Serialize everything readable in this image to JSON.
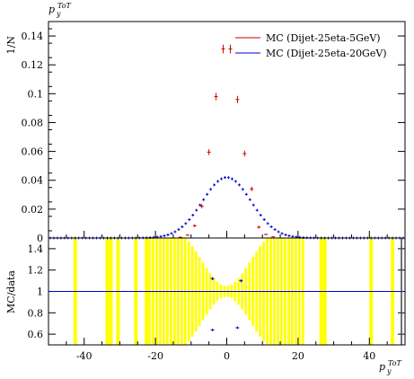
{
  "chart_data": [
    {
      "type": "scatter",
      "panel": "main",
      "ylabel": "1/N",
      "title_var": "p",
      "title_sub": "y",
      "title_sup": "ToT",
      "xlim": [
        -50,
        50
      ],
      "ylim": [
        0,
        0.15
      ],
      "xticks": [
        -40,
        -20,
        0,
        20,
        40
      ],
      "yticks": [
        0,
        0.02,
        0.04,
        0.06,
        0.08,
        0.1,
        0.12,
        0.14
      ],
      "ytick_labels": [
        "0",
        "0.02",
        "0.04",
        "0.06",
        "0.08",
        "0.1",
        "0.12",
        "0.14"
      ],
      "legend_position": "top-right",
      "series": [
        {
          "name": "MC (Dijet-25eta-5GeV)",
          "color": "#cc0000",
          "x": [
            -13,
            -11,
            -9,
            -7,
            -5,
            -3,
            -1,
            1,
            3,
            5,
            7,
            9,
            11,
            13
          ],
          "y": [
            0.0005,
            0.002,
            0.0085,
            0.022,
            0.0595,
            0.098,
            0.131,
            0.131,
            0.096,
            0.0585,
            0.034,
            0.0075,
            0.0025,
            0.0008
          ],
          "err": [
            0.0003,
            0.0005,
            0.001,
            0.0015,
            0.002,
            0.0025,
            0.003,
            0.003,
            0.0025,
            0.002,
            0.0015,
            0.001,
            0.0005,
            0.0003
          ]
        },
        {
          "name": "MC (Dijet-25eta-20GeV)",
          "color": "#0000cc",
          "sigma": 6.8,
          "amp": 0.042,
          "range": [
            -50,
            50
          ]
        }
      ]
    },
    {
      "type": "scatter",
      "panel": "ratio",
      "ylabel": "MC/data",
      "xlabel_var": "p",
      "xlabel_sub": "y",
      "xlabel_sup": "ToT",
      "xlim": [
        -50,
        50
      ],
      "ylim": [
        0.5,
        1.5
      ],
      "yticks": [
        0.6,
        0.8,
        1,
        1.2,
        1.4
      ],
      "ytick_labels": [
        "0.6",
        "0.8",
        "1",
        "1.2",
        "1.4"
      ],
      "xticks": [
        -40,
        -20,
        0,
        20,
        40
      ],
      "xtick_labels": [
        "-40",
        "-20",
        "0",
        "20",
        "40"
      ],
      "reference_line": 1,
      "band_color": "#ffff00",
      "band_full": [
        [
          -43,
          -42
        ],
        [
          -34,
          -33
        ],
        [
          -33,
          -32
        ],
        [
          -31,
          -30
        ],
        [
          -26,
          -25
        ],
        [
          -23,
          -22
        ],
        [
          26,
          27
        ],
        [
          27,
          28
        ],
        [
          40,
          41
        ],
        [
          46,
          47
        ]
      ],
      "band_partial_range": [
        -22,
        22
      ],
      "ratio_points": [
        {
          "x": -4,
          "y": 1.12,
          "err": 0.015,
          "color": "#0000cc"
        },
        {
          "x": 4,
          "y": 1.1,
          "err": 0.015,
          "color": "#0000cc"
        },
        {
          "x": -4,
          "y": 0.64,
          "err": 0.012,
          "color": "#0000cc"
        },
        {
          "x": 3,
          "y": 0.66,
          "err": 0.012,
          "color": "#0000cc"
        }
      ]
    }
  ]
}
